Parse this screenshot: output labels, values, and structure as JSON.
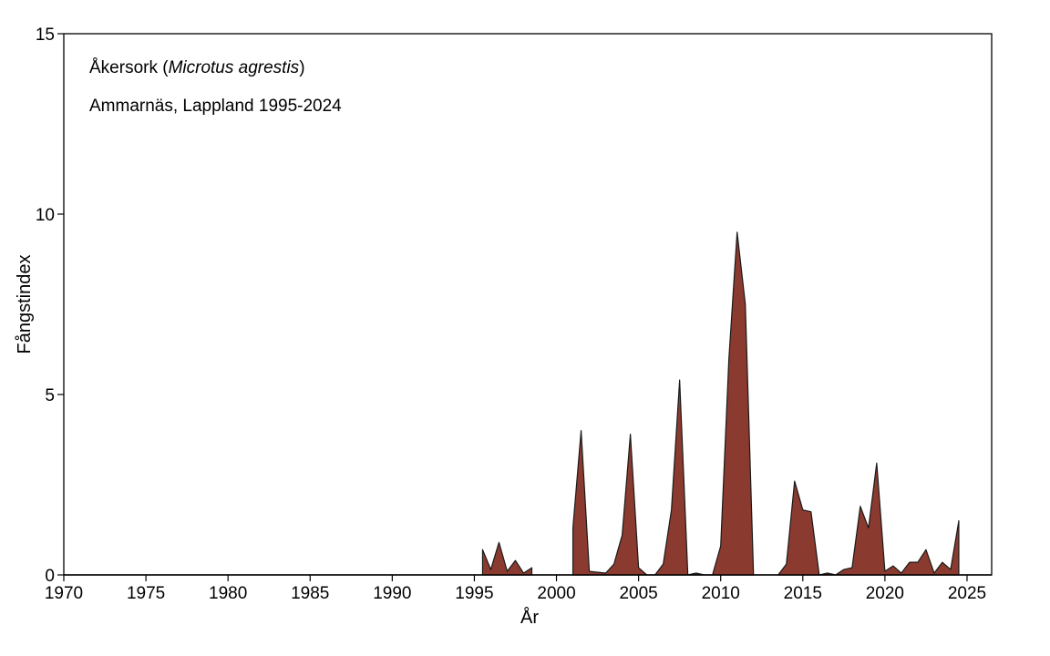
{
  "chart_data": {
    "type": "area",
    "title_parts": [
      "Åkersork (",
      "Microtus agrestis",
      ")"
    ],
    "subtitle": "Ammarnäs, Lappland 1995-2024",
    "xlabel": "År",
    "ylabel": "Fångstindex",
    "xlim": [
      1970,
      2026.5
    ],
    "ylim": [
      0,
      15
    ],
    "xticks": [
      1970,
      1975,
      1980,
      1985,
      1990,
      1995,
      2000,
      2005,
      2010,
      2015,
      2020,
      2025
    ],
    "yticks": [
      0,
      5,
      10,
      15
    ],
    "grid": false,
    "fill_color": "#8b3a2f",
    "line_color": "#1a1a1a",
    "segments": [
      [
        [
          1995.5,
          0
        ],
        [
          1995.5,
          0.7
        ],
        [
          1996.0,
          0.15
        ],
        [
          1996.5,
          0.9
        ],
        [
          1997.0,
          0.1
        ],
        [
          1997.5,
          0.4
        ],
        [
          1998.0,
          0.05
        ],
        [
          1998.5,
          0.2
        ],
        [
          1998.5,
          0
        ]
      ],
      [
        [
          2001.0,
          0
        ],
        [
          2001.0,
          1.3
        ],
        [
          2001.5,
          4.0
        ],
        [
          2002.0,
          0.1
        ],
        [
          2003.0,
          0.05
        ],
        [
          2003.5,
          0.3
        ],
        [
          2004.0,
          1.1
        ],
        [
          2004.5,
          3.9
        ],
        [
          2005.0,
          0.2
        ],
        [
          2005.5,
          0.0
        ],
        [
          2006.0,
          0.0
        ],
        [
          2006.5,
          0.3
        ],
        [
          2007.0,
          1.8
        ],
        [
          2007.5,
          5.4
        ],
        [
          2008.0,
          0.0
        ],
        [
          2008.5,
          0.05
        ],
        [
          2009.0,
          0.0
        ],
        [
          2009.5,
          0.0
        ],
        [
          2010.0,
          0.8
        ],
        [
          2010.5,
          6.0
        ],
        [
          2011.0,
          9.5
        ],
        [
          2011.5,
          7.5
        ],
        [
          2012.0,
          0
        ]
      ],
      [
        [
          2013.5,
          0
        ],
        [
          2014.0,
          0.3
        ],
        [
          2014.5,
          2.6
        ],
        [
          2015.0,
          1.8
        ],
        [
          2015.5,
          1.75
        ],
        [
          2016.0,
          0.0
        ],
        [
          2016.5,
          0.05
        ],
        [
          2017.0,
          0.0
        ],
        [
          2017.5,
          0.15
        ],
        [
          2018.0,
          0.2
        ],
        [
          2018.5,
          1.9
        ],
        [
          2019.0,
          1.3
        ],
        [
          2019.5,
          3.1
        ],
        [
          2020.0,
          0.1
        ],
        [
          2020.5,
          0.25
        ],
        [
          2021.0,
          0.05
        ],
        [
          2021.5,
          0.35
        ],
        [
          2022.0,
          0.35
        ],
        [
          2022.5,
          0.7
        ],
        [
          2023.0,
          0.05
        ],
        [
          2023.5,
          0.35
        ],
        [
          2024.0,
          0.15
        ],
        [
          2024.5,
          1.5
        ],
        [
          2024.5,
          0
        ]
      ]
    ]
  }
}
